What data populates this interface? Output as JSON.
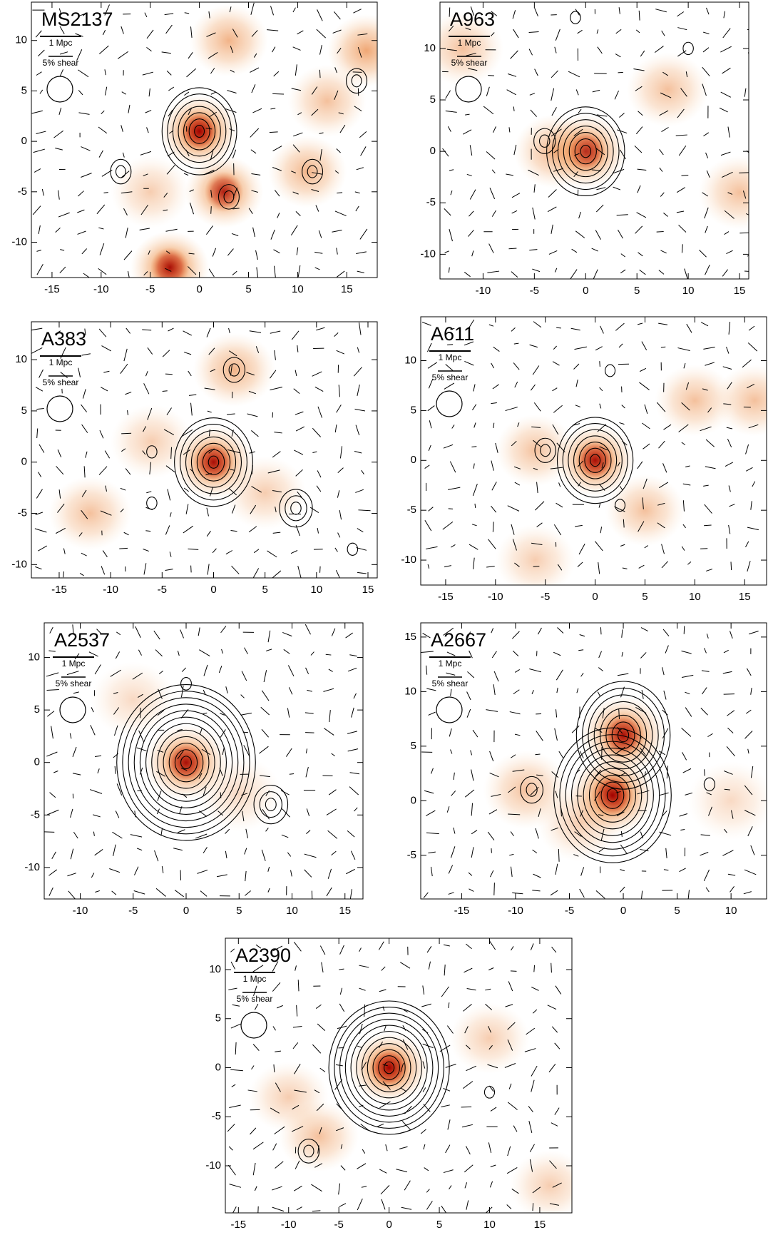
{
  "chart_data": [
    {
      "type": "map",
      "title": "MS2137",
      "scale_label": "1 Mpc",
      "shear_label": "5% shear",
      "xlim": [
        -17.1,
        18.1
      ],
      "ylim": [
        -13.5,
        13.8
      ],
      "xticks": [
        -15,
        -10,
        -5,
        0,
        5,
        10,
        15
      ],
      "yticks": [
        -10,
        -5,
        0,
        5,
        10
      ],
      "heat": [
        [
          0,
          1,
          1.0
        ],
        [
          -3,
          -12.5,
          0.9
        ],
        [
          2.5,
          -5,
          0.8
        ],
        [
          3,
          10,
          0.6
        ],
        [
          11,
          -3,
          0.6
        ],
        [
          17,
          9,
          0.7
        ],
        [
          -5,
          -5,
          0.4
        ],
        [
          13,
          4,
          0.5
        ]
      ],
      "contours": [
        [
          0,
          1,
          7
        ],
        [
          -8,
          -3,
          2
        ],
        [
          11.5,
          -3,
          2
        ],
        [
          16,
          6,
          2
        ],
        [
          3,
          -5.5,
          2
        ]
      ]
    },
    {
      "type": "map",
      "title": "A963",
      "scale_label": "1 Mpc",
      "shear_label": "5% shear",
      "xlim": [
        -14.2,
        15.9
      ],
      "ylim": [
        -12.4,
        14.5
      ],
      "xticks": [
        -10,
        -5,
        0,
        5,
        10,
        15
      ],
      "yticks": [
        -10,
        -5,
        0,
        5,
        10
      ],
      "heat": [
        [
          0,
          0,
          0.9
        ],
        [
          -12,
          10,
          0.5
        ],
        [
          8,
          6,
          0.5
        ],
        [
          -3,
          0,
          0.6
        ],
        [
          15,
          -4,
          0.5
        ]
      ],
      "contours": [
        [
          0,
          0,
          7
        ],
        [
          -4,
          1,
          2
        ],
        [
          -1,
          13,
          1
        ],
        [
          10,
          10,
          1
        ]
      ]
    },
    {
      "type": "map",
      "title": "A383",
      "scale_label": "1 Mpc",
      "shear_label": "5% shear",
      "xlim": [
        -17.7,
        15.9
      ],
      "ylim": [
        -11.3,
        13.7
      ],
      "xticks": [
        -15,
        -10,
        -5,
        0,
        5,
        10,
        15
      ],
      "yticks": [
        -10,
        -5,
        0,
        5,
        10
      ],
      "heat": [
        [
          0,
          0,
          0.9
        ],
        [
          2,
          9,
          0.6
        ],
        [
          -12,
          -5,
          0.5
        ],
        [
          5,
          -3,
          0.4
        ],
        [
          -6,
          2,
          0.4
        ]
      ],
      "contours": [
        [
          0,
          0,
          7
        ],
        [
          2,
          9,
          2
        ],
        [
          8,
          -4.5,
          3
        ],
        [
          -6,
          1,
          1
        ],
        [
          -6,
          -4,
          1
        ],
        [
          13.5,
          -8.5,
          1
        ]
      ]
    },
    {
      "type": "map",
      "title": "A611",
      "scale_label": "1 Mpc",
      "shear_label": "5% shear",
      "xlim": [
        -17.5,
        17.2
      ],
      "ylim": [
        -12.5,
        14.4
      ],
      "xticks": [
        -15,
        -10,
        -5,
        0,
        5,
        10,
        15
      ],
      "yticks": [
        -10,
        -5,
        0,
        5,
        10
      ],
      "heat": [
        [
          0,
          0,
          0.9
        ],
        [
          -6,
          1,
          0.5
        ],
        [
          10,
          6,
          0.5
        ],
        [
          16,
          6,
          0.5
        ],
        [
          5,
          -5,
          0.5
        ],
        [
          -6,
          -10,
          0.4
        ]
      ],
      "contours": [
        [
          0,
          0,
          7
        ],
        [
          -5,
          1,
          2
        ],
        [
          1.5,
          9,
          1
        ],
        [
          2.5,
          -4.5,
          1
        ]
      ]
    },
    {
      "type": "map",
      "title": "A2537",
      "scale_label": "1 Mpc",
      "shear_label": "5% shear",
      "xlim": [
        -13.4,
        16.7
      ],
      "ylim": [
        -13.0,
        13.3
      ],
      "xticks": [
        -10,
        -5,
        0,
        5,
        10,
        15
      ],
      "yticks": [
        -10,
        -5,
        0,
        5,
        10
      ],
      "heat": [
        [
          0,
          0,
          0.9
        ],
        [
          5,
          -3,
          0.3
        ],
        [
          -5,
          6,
          0.3
        ]
      ],
      "contours": [
        [
          0,
          0,
          12
        ],
        [
          8,
          -4,
          3
        ],
        [
          0,
          7.5,
          1
        ]
      ]
    },
    {
      "type": "map",
      "title": "A2667",
      "scale_label": "1 Mpc",
      "shear_label": "5% shear",
      "xlim": [
        -18.8,
        13.3
      ],
      "ylim": [
        -9.0,
        16.3
      ],
      "xticks": [
        -15,
        -10,
        -5,
        0,
        5,
        10
      ],
      "yticks": [
        -5,
        0,
        5,
        10,
        15
      ],
      "heat": [
        [
          0,
          6,
          0.9
        ],
        [
          -1,
          0.5,
          1.0
        ],
        [
          -9,
          1,
          0.5
        ],
        [
          -4,
          -2,
          0.4
        ],
        [
          10,
          0,
          0.3
        ]
      ],
      "contours": [
        [
          0,
          6,
          8
        ],
        [
          -1,
          0.5,
          10
        ],
        [
          -8.5,
          1,
          2
        ],
        [
          8,
          1.5,
          1
        ]
      ]
    },
    {
      "type": "map",
      "title": "A2390",
      "scale_label": "1 Mpc",
      "shear_label": "5% shear",
      "xlim": [
        -16.3,
        18.2
      ],
      "ylim": [
        -14.8,
        13.2
      ],
      "xticks": [
        -15,
        -10,
        -5,
        0,
        5,
        10,
        15
      ],
      "yticks": [
        -10,
        -5,
        0,
        5,
        10
      ],
      "heat": [
        [
          0,
          0,
          1.0
        ],
        [
          -7,
          -7,
          0.5
        ],
        [
          10,
          3,
          0.4
        ],
        [
          -10,
          -3,
          0.4
        ],
        [
          16,
          -12,
          0.4
        ]
      ],
      "contours": [
        [
          0,
          0,
          11
        ],
        [
          -8,
          -8.5,
          2
        ],
        [
          10,
          -2.5,
          1
        ]
      ]
    }
  ]
}
